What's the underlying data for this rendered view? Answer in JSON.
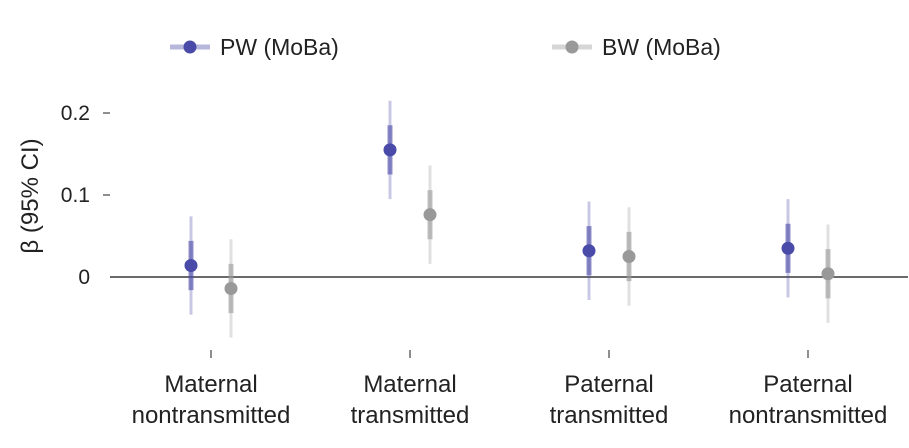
{
  "chart_data": {
    "type": "scatter",
    "title": "",
    "xlabel": "",
    "ylabel": "β (95% CI)",
    "ylim": [
      -0.1,
      0.22
    ],
    "yticks": [
      0,
      0.1,
      0.2
    ],
    "ytick_labels": [
      "0",
      "0.1",
      "0.2"
    ],
    "categories": [
      [
        "Maternal",
        "nontransmitted"
      ],
      [
        "Maternal",
        "transmitted"
      ],
      [
        "Paternal",
        "transmitted"
      ],
      [
        "Paternal",
        "nontransmitted"
      ]
    ],
    "legend_position": "top",
    "reference_line": 0,
    "series": [
      {
        "name": "PW (MoBa)",
        "color": "#4a4aa8",
        "values": [
          0.014,
          0.155,
          0.032,
          0.035
        ],
        "ci_lower": [
          -0.046,
          0.095,
          -0.028,
          -0.025
        ],
        "ci_upper": [
          0.074,
          0.215,
          0.092,
          0.095
        ],
        "inner_lower": [
          -0.016,
          0.125,
          0.002,
          0.005
        ],
        "inner_upper": [
          0.044,
          0.185,
          0.062,
          0.065
        ]
      },
      {
        "name": "BW (MoBa)",
        "color": "#999999",
        "values": [
          -0.014,
          0.076,
          0.025,
          0.004
        ],
        "ci_lower": [
          -0.074,
          0.016,
          -0.035,
          -0.056
        ],
        "ci_upper": [
          0.046,
          0.136,
          0.085,
          0.064
        ],
        "inner_lower": [
          -0.044,
          0.046,
          -0.005,
          -0.026
        ],
        "inner_upper": [
          0.016,
          0.106,
          0.055,
          0.034
        ]
      }
    ]
  }
}
